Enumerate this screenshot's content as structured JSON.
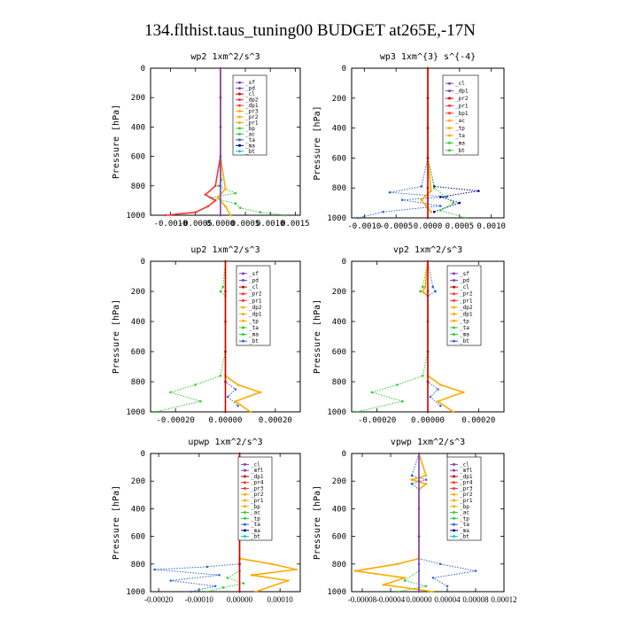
{
  "figure": {
    "title": "134.flthist.taus_tuning00  BUDGET at265E,-17N"
  },
  "chart_data": [
    {
      "type": "line",
      "title": "wp2  1xm^2/s^3",
      "ylabel": "Pressure [hPa]",
      "xlim": [
        -0.0014,
        0.0016
      ],
      "ylim": [
        1000,
        0
      ],
      "xtick_labels": [
        "-0.0010",
        "-0.0005",
        "0.0000",
        "0.0005",
        "0.0010",
        "0.0015"
      ],
      "ytick_labels": [
        "0",
        "200",
        "400",
        "600",
        "800",
        "1000"
      ],
      "x_tick_values": [
        -0.001,
        -0.0005,
        0.0,
        0.0005,
        0.001,
        0.0015
      ],
      "y_tick_values": [
        0,
        200,
        400,
        600,
        800,
        1000
      ],
      "legend": [
        "_sf",
        "_pd",
        "_cl",
        "_dp2",
        "_dp1",
        "_pr3",
        "_pr2",
        "_pr1",
        "_bp",
        "_ac",
        "_ta",
        "_ma",
        "_bt"
      ],
      "series": [
        {
          "name": "_dp1",
          "color": "#33cc33",
          "style": "dots",
          "x": [
            0,
            0,
            0,
            0,
            2e-05,
            -4e-05,
            0.0003,
            -0.0002,
            0.0003,
            0.0004,
            0.0008,
            0.0013
          ],
          "y": [
            0,
            200,
            400,
            600,
            760,
            800,
            850,
            880,
            920,
            950,
            980,
            1000
          ]
        },
        {
          "name": "_dp2",
          "color": "#ff3333",
          "style": "solid",
          "x": [
            0,
            0,
            0,
            0,
            -0.0001,
            -0.0003,
            -0.0001,
            -0.00025,
            -0.0005,
            -0.0011
          ],
          "y": [
            0,
            200,
            400,
            600,
            800,
            860,
            900,
            940,
            980,
            1000
          ]
        },
        {
          "name": "_pr1",
          "color": "#ffaa00",
          "style": "solid",
          "x": [
            0,
            0,
            0,
            0,
            0.0001,
            -5e-05,
            0.0001,
            0.0002
          ],
          "y": [
            0,
            200,
            400,
            600,
            820,
            880,
            940,
            1000
          ]
        },
        {
          "name": "_bt",
          "color": "#7b3fbf",
          "style": "solid",
          "x": [
            0,
            0,
            0,
            0,
            0,
            0
          ],
          "y": [
            0,
            200,
            400,
            600,
            800,
            1000
          ]
        }
      ]
    },
    {
      "type": "line",
      "title": "wp3  1xm^{3} s^{-4}",
      "ylabel": "Pressure [hPa]",
      "xlim": [
        -0.0012,
        0.0012
      ],
      "ylim": [
        1000,
        0
      ],
      "xtick_labels": [
        "-0.0010",
        "-0.0005",
        "0.0000",
        "0.0005",
        "0.0010"
      ],
      "ytick_labels": [
        "0",
        "200",
        "400",
        "600",
        "800",
        "1000"
      ],
      "x_tick_values": [
        -0.001,
        -0.0005,
        0.0,
        0.0005,
        0.001
      ],
      "y_tick_values": [
        0,
        200,
        400,
        600,
        800,
        1000
      ],
      "legend": [
        "_cl",
        "_dp1",
        "_pr2",
        "_pr1",
        "_bp1",
        "_ac",
        "_tp",
        "_ta",
        "_ma",
        "_bt"
      ],
      "series": [
        {
          "name": "_tp",
          "color": "#3366cc",
          "style": "dots",
          "x": [
            0,
            0,
            0,
            0,
            -0.0001,
            -0.0006,
            0.0003,
            -0.0004,
            0.0002,
            -0.0007,
            -0.0011
          ],
          "y": [
            0,
            200,
            400,
            600,
            790,
            830,
            860,
            880,
            920,
            960,
            1000
          ]
        },
        {
          "name": "_ta",
          "color": "#000080",
          "style": "dots",
          "x": [
            0,
            0,
            0,
            0,
            0.0001,
            0.0008,
            0.0002,
            0.0005,
            0.0001
          ],
          "y": [
            0,
            200,
            400,
            600,
            790,
            820,
            860,
            900,
            960
          ]
        },
        {
          "name": "_ac",
          "color": "#33cc33",
          "style": "dots",
          "x": [
            0,
            0,
            0,
            0,
            0.0001,
            0.0004,
            0.0002,
            0.0006
          ],
          "y": [
            0,
            200,
            400,
            600,
            800,
            900,
            950,
            1000
          ]
        },
        {
          "name": "_pr2",
          "color": "#ffaa00",
          "style": "solid",
          "x": [
            0,
            0,
            0,
            0,
            5e-05,
            -0.0001,
            5e-05
          ],
          "y": [
            0,
            200,
            400,
            600,
            820,
            880,
            960
          ]
        },
        {
          "name": "_cl",
          "color": "#cc0000",
          "style": "solid",
          "x": [
            0,
            0,
            0,
            0,
            0,
            0
          ],
          "y": [
            0,
            200,
            400,
            600,
            800,
            1000
          ]
        }
      ]
    },
    {
      "type": "line",
      "title": "up2  1xm^2/s^3",
      "ylabel": "Pressure [hPa]",
      "xlim": [
        -0.0003,
        0.0003
      ],
      "ylim": [
        1000,
        0
      ],
      "xtick_labels": [
        "-0.00020",
        "0.00000",
        "0.00020"
      ],
      "ytick_labels": [
        "0",
        "200",
        "400",
        "600",
        "800",
        "1000"
      ],
      "x_tick_values": [
        -0.0002,
        0.0,
        0.0002
      ],
      "y_tick_values": [
        0,
        200,
        400,
        600,
        800,
        1000
      ],
      "legend": [
        "_sf",
        "_pd",
        "_cl",
        "_pr2",
        "_pr1",
        "_dp2",
        "_dp1",
        "_tp",
        "_ta",
        "_ma",
        "_bt"
      ],
      "series": [
        {
          "name": "_dp1",
          "color": "#33cc33",
          "style": "dots",
          "x": [
            0,
            -1e-05,
            -2e-05,
            0,
            0,
            -2e-05,
            -0.00012,
            -0.00022,
            -0.0001,
            -0.00028
          ],
          "y": [
            0,
            170,
            200,
            230,
            600,
            760,
            820,
            870,
            930,
            1000
          ]
        },
        {
          "name": "_pr2",
          "color": "#ffaa00",
          "style": "solid",
          "x": [
            0,
            0,
            0,
            5e-05,
            0.00014,
            4e-05,
            0.0001
          ],
          "y": [
            0,
            600,
            760,
            820,
            870,
            930,
            1000
          ]
        },
        {
          "name": "_tp",
          "color": "#3366cc",
          "style": "dots",
          "x": [
            0,
            0,
            0,
            4e-05,
            1e-05,
            5e-05
          ],
          "y": [
            0,
            600,
            800,
            850,
            900,
            960
          ]
        },
        {
          "name": "_bt",
          "color": "#cc0000",
          "style": "solid",
          "x": [
            0,
            0,
            0,
            0,
            0,
            0
          ],
          "y": [
            0,
            200,
            400,
            600,
            800,
            1000
          ]
        }
      ]
    },
    {
      "type": "line",
      "title": "vp2  1xm^2/s^3",
      "ylabel": "Pressure [hPa]",
      "xlim": [
        -0.0003,
        0.0003
      ],
      "ylim": [
        1000,
        0
      ],
      "xtick_labels": [
        "-0.00020",
        "0.00000",
        "0.00020"
      ],
      "ytick_labels": [
        "0",
        "200",
        "400",
        "600",
        "800",
        "1000"
      ],
      "x_tick_values": [
        -0.0002,
        0.0,
        0.0002
      ],
      "y_tick_values": [
        0,
        200,
        400,
        600,
        800,
        1000
      ],
      "legend": [
        "_sf",
        "_pd",
        "_cl",
        "_pr2",
        "_pr1",
        "_dp2",
        "_dp1",
        "_tp",
        "_ta",
        "_ma",
        "_bt"
      ],
      "series": [
        {
          "name": "_dp1",
          "color": "#33cc33",
          "style": "dots",
          "x": [
            0,
            -2e-05,
            -3e-05,
            0,
            0,
            -2e-05,
            -0.00012,
            -0.00022,
            -0.0001,
            -0.00028
          ],
          "y": [
            0,
            170,
            200,
            230,
            600,
            760,
            820,
            870,
            930,
            1000
          ]
        },
        {
          "name": "_pr2",
          "color": "#ffaa00",
          "style": "solid",
          "x": [
            0,
            -1e-05,
            -2e-05,
            0,
            0,
            0,
            5e-05,
            0.00014,
            4e-05,
            0.0001
          ],
          "y": [
            0,
            170,
            200,
            230,
            600,
            760,
            820,
            870,
            930,
            1000
          ]
        },
        {
          "name": "_tp",
          "color": "#3366cc",
          "style": "dots",
          "x": [
            0,
            2e-05,
            3e-05,
            0,
            0,
            0,
            4e-05,
            1e-05,
            5e-05
          ],
          "y": [
            0,
            170,
            200,
            230,
            600,
            800,
            850,
            900,
            960
          ]
        },
        {
          "name": "_bt",
          "color": "#cc0000",
          "style": "solid",
          "x": [
            0,
            0,
            0,
            0,
            0,
            0
          ],
          "y": [
            0,
            200,
            400,
            600,
            800,
            1000
          ]
        }
      ]
    },
    {
      "type": "line",
      "title": "upwp  1xm^2/s^3",
      "ylabel": "Pressure [hPa]",
      "xlim": [
        -0.00022,
        0.00015
      ],
      "ylim": [
        1000,
        0
      ],
      "xtick_labels": [
        "-0.00020",
        "-0.00010",
        "0.00000",
        "0.00010"
      ],
      "ytick_labels": [
        "0",
        "200",
        "400",
        "600",
        "800",
        "1000"
      ],
      "x_tick_values": [
        -0.0002,
        -0.0001,
        0.0,
        0.0001
      ],
      "y_tick_values": [
        0,
        200,
        400,
        600,
        800,
        1000
      ],
      "legend": [
        "_cl",
        "_mfl",
        "_dp1",
        "_pr4",
        "_pr3",
        "_pr2",
        "_pr1",
        "_bp",
        "_ac",
        "_tp",
        "_ta",
        "_ma",
        "_bt"
      ],
      "series": [
        {
          "name": "_tp",
          "color": "#3366cc",
          "style": "dots",
          "x": [
            0,
            0,
            0,
            0,
            -8e-05,
            -0.00021,
            -5e-05,
            -0.00017,
            -6e-05,
            -0.00012
          ],
          "y": [
            0,
            600,
            760,
            800,
            820,
            840,
            880,
            920,
            960,
            1000
          ]
        },
        {
          "name": "_pr2",
          "color": "#ffaa00",
          "style": "solid",
          "x": [
            0,
            0,
            0,
            8e-05,
            0.00014,
            3e-05,
            0.00012,
            4e-05
          ],
          "y": [
            0,
            600,
            760,
            800,
            840,
            880,
            920,
            1000
          ]
        },
        {
          "name": "_ac",
          "color": "#33cc33",
          "style": "dots",
          "x": [
            0,
            0,
            0,
            -3e-05,
            1e-05,
            -4e-05,
            -8e-05
          ],
          "y": [
            0,
            600,
            850,
            900,
            940,
            970,
            1000
          ]
        },
        {
          "name": "_bt",
          "color": "#cc0000",
          "style": "solid",
          "x": [
            0,
            0,
            0,
            0,
            0,
            0
          ],
          "y": [
            0,
            200,
            400,
            600,
            800,
            1000
          ]
        }
      ]
    },
    {
      "type": "line",
      "title": "vpwp  1xm^2/s^3",
      "ylabel": "Pressure [hPa]",
      "xlim": [
        -9.5e-05,
        0.00012
      ],
      "ylim": [
        1000,
        0
      ],
      "xtick_labels": [
        "-0.00008",
        "-0.00004",
        "0.00000",
        "0.00004",
        "0.00008",
        "0.00012"
      ],
      "ytick_labels": [
        "0",
        "200",
        "400",
        "600",
        "800",
        "1000"
      ],
      "x_tick_values": [
        -8e-05,
        -4e-05,
        0.0,
        4e-05,
        8e-05,
        0.00012
      ],
      "y_tick_values": [
        0,
        200,
        400,
        600,
        800,
        1000
      ],
      "legend": [
        "_cl",
        "_mfl",
        "_dp1",
        "_pr4",
        "_pr3",
        "_pr2",
        "_pr1",
        "_bp",
        "_ac",
        "_tp",
        "_ta",
        "_ma",
        "_bt"
      ],
      "series": [
        {
          "name": "_tp",
          "color": "#3366cc",
          "style": "dots",
          "x": [
            0,
            -1e-05,
            1e-05,
            -1e-05,
            0,
            0,
            0,
            3e-05,
            8e-05,
            2e-05,
            4e-05
          ],
          "y": [
            0,
            160,
            190,
            220,
            260,
            600,
            760,
            800,
            850,
            900,
            960
          ]
        },
        {
          "name": "_pr2",
          "color": "#ffaa00",
          "style": "solid",
          "x": [
            0,
            1e-05,
            -1e-05,
            1e-05,
            0,
            0,
            0,
            -3e-05,
            -9e-05,
            -2e-05,
            -5e-05,
            2e-05
          ],
          "y": [
            0,
            160,
            190,
            220,
            260,
            600,
            760,
            800,
            850,
            900,
            950,
            1000
          ]
        },
        {
          "name": "_ac",
          "color": "#33cc33",
          "style": "dots",
          "x": [
            0,
            0,
            0,
            -2e-05,
            1e-05,
            -3e-05
          ],
          "y": [
            0,
            600,
            850,
            920,
            960,
            1000
          ]
        },
        {
          "name": "_bt",
          "color": "#7b3fbf",
          "style": "solid",
          "x": [
            0,
            0,
            0,
            0,
            0,
            0
          ],
          "y": [
            0,
            200,
            400,
            600,
            800,
            1000
          ]
        }
      ]
    }
  ]
}
